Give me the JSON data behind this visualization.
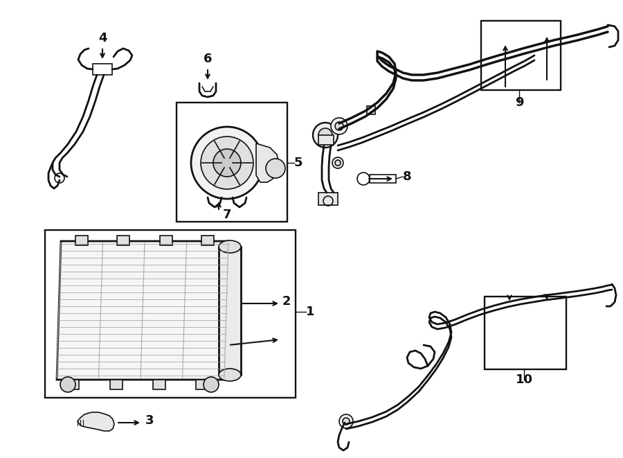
{
  "bg_color": "#ffffff",
  "line_color": "#111111",
  "label_color": "#000000",
  "fig_w": 9.0,
  "fig_h": 6.61,
  "dpi": 100
}
